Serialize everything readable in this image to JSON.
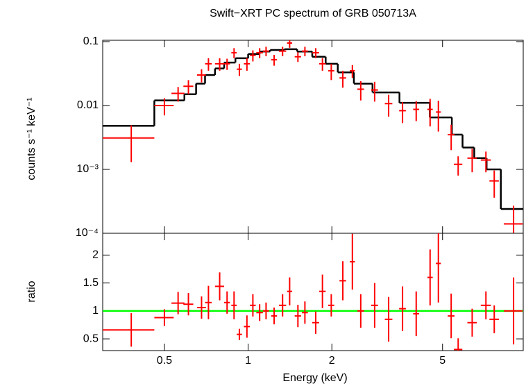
{
  "chart_data": [
    {
      "type": "errorbar",
      "title": "Swift−XRT PC spectrum of GRB 050713A",
      "ylabel": "counts s⁻¹ keV⁻¹",
      "xlog": true,
      "ylog": true,
      "xlim": [
        0.3,
        9.75
      ],
      "ylim": [
        0.0001,
        0.105
      ],
      "yticks": [
        0.1,
        0.01,
        {
          "value": 0.001,
          "label": "10⁻³"
        },
        {
          "value": 0.0001,
          "label": "10⁻⁴"
        }
      ],
      "color": "#ff0000",
      "x": [
        0.38,
        0.5,
        0.56,
        0.61,
        0.68,
        0.72,
        0.79,
        0.84,
        0.89,
        0.93,
        0.99,
        1.04,
        1.1,
        1.16,
        1.24,
        1.33,
        1.41,
        1.51,
        1.6,
        1.75,
        1.85,
        1.99,
        2.19,
        2.37,
        2.54,
        2.85,
        3.2,
        3.59,
        4.02,
        4.51,
        4.83,
        5.37,
        5.69,
        6.39,
        7.16,
        7.67,
        9.0
      ],
      "xerr": [
        0.08,
        0.04,
        0.03,
        0.025,
        0.025,
        0.02,
        0.03,
        0.02,
        0.02,
        0.02,
        0.025,
        0.025,
        0.03,
        0.03,
        0.03,
        0.04,
        0.03,
        0.04,
        0.04,
        0.05,
        0.05,
        0.05,
        0.06,
        0.05,
        0.07,
        0.08,
        0.1,
        0.1,
        0.1,
        0.1,
        0.1,
        0.15,
        0.2,
        0.25,
        0.3,
        0.3,
        0.7
      ],
      "values": [
        0.0031,
        0.01,
        0.0155,
        0.02,
        0.03,
        0.045,
        0.045,
        0.045,
        0.067,
        0.037,
        0.045,
        0.061,
        0.067,
        0.071,
        0.052,
        0.071,
        0.095,
        0.058,
        0.071,
        0.067,
        0.045,
        0.035,
        0.027,
        0.035,
        0.018,
        0.0175,
        0.0107,
        0.0083,
        0.0087,
        0.0087,
        0.0079,
        0.0035,
        0.0012,
        0.0015,
        0.0014,
        0.00066,
        0.00014
      ],
      "yerr": [
        0.0018,
        0.003,
        0.004,
        0.005,
        0.007,
        0.01,
        0.01,
        0.009,
        0.012,
        0.008,
        0.01,
        0.012,
        0.012,
        0.012,
        0.01,
        0.012,
        0.015,
        0.01,
        0.012,
        0.012,
        0.01,
        0.01,
        0.008,
        0.008,
        0.006,
        0.006,
        0.004,
        0.003,
        0.003,
        0.004,
        0.004,
        0.0015,
        0.0004,
        0.0006,
        0.0005,
        0.0003,
        0.00013
      ],
      "model": {
        "color": "#000000",
        "bins": [
          0.3,
          0.46,
          0.59,
          0.65,
          0.7,
          0.76,
          0.82,
          0.9,
          1.0,
          1.1,
          1.2,
          1.35,
          1.5,
          1.7,
          1.9,
          2.1,
          2.4,
          2.8,
          3.5,
          4.5,
          5.4,
          5.9,
          6.5,
          7.2,
          8.1,
          9.75
        ],
        "values": [
          0.0048,
          0.012,
          0.015,
          0.022,
          0.03,
          0.038,
          0.047,
          0.055,
          0.064,
          0.07,
          0.074,
          0.076,
          0.07,
          0.058,
          0.045,
          0.033,
          0.022,
          0.016,
          0.011,
          0.0065,
          0.0035,
          0.0022,
          0.0015,
          0.001,
          0.00024
        ]
      }
    },
    {
      "type": "errorbar",
      "ylabel": "ratio",
      "xlabel": "Energy (keV)",
      "xlog": true,
      "ylog": false,
      "xlim": [
        0.3,
        9.75
      ],
      "ylim": [
        0.29,
        2.39
      ],
      "xticks": [
        0.5,
        1,
        2,
        5
      ],
      "yticks": [
        0.5,
        1,
        1.5,
        2
      ],
      "color": "#ff0000",
      "hline": 1,
      "hline_color": "#00ff00",
      "x": [
        0.38,
        0.5,
        0.56,
        0.61,
        0.68,
        0.72,
        0.79,
        0.84,
        0.89,
        0.93,
        0.99,
        1.04,
        1.1,
        1.16,
        1.24,
        1.33,
        1.41,
        1.51,
        1.6,
        1.75,
        1.85,
        1.99,
        2.19,
        2.37,
        2.54,
        2.85,
        3.2,
        3.59,
        4.02,
        4.51,
        4.83,
        5.37,
        5.69,
        6.39,
        7.16,
        7.67,
        9.0
      ],
      "xerr": [
        0.08,
        0.04,
        0.03,
        0.025,
        0.025,
        0.02,
        0.03,
        0.02,
        0.02,
        0.02,
        0.025,
        0.025,
        0.03,
        0.03,
        0.03,
        0.04,
        0.03,
        0.04,
        0.04,
        0.05,
        0.05,
        0.05,
        0.06,
        0.05,
        0.07,
        0.08,
        0.1,
        0.1,
        0.1,
        0.1,
        0.1,
        0.15,
        0.2,
        0.25,
        0.3,
        0.3,
        0.7
      ],
      "values": [
        0.66,
        0.88,
        1.14,
        1.12,
        1.06,
        1.15,
        1.44,
        1.15,
        1.1,
        0.58,
        0.72,
        1.1,
        0.97,
        1.0,
        0.91,
        1.1,
        1.35,
        0.91,
        0.97,
        0.79,
        1.35,
        1.1,
        1.54,
        1.88,
        1.0,
        1.1,
        0.85,
        1.04,
        0.95,
        1.6,
        1.85,
        0.91,
        0.31,
        0.79,
        1.1,
        0.85,
        1.0
      ],
      "yerr": [
        0.3,
        0.15,
        0.2,
        0.2,
        0.2,
        0.3,
        0.25,
        0.2,
        0.25,
        0.1,
        0.2,
        0.2,
        0.15,
        0.15,
        0.15,
        0.2,
        0.25,
        0.2,
        0.2,
        0.2,
        0.3,
        0.2,
        0.35,
        0.5,
        0.3,
        0.4,
        0.4,
        0.4,
        0.4,
        0.5,
        0.7,
        0.4,
        0.2,
        0.25,
        0.25,
        0.25,
        0.6
      ]
    }
  ]
}
